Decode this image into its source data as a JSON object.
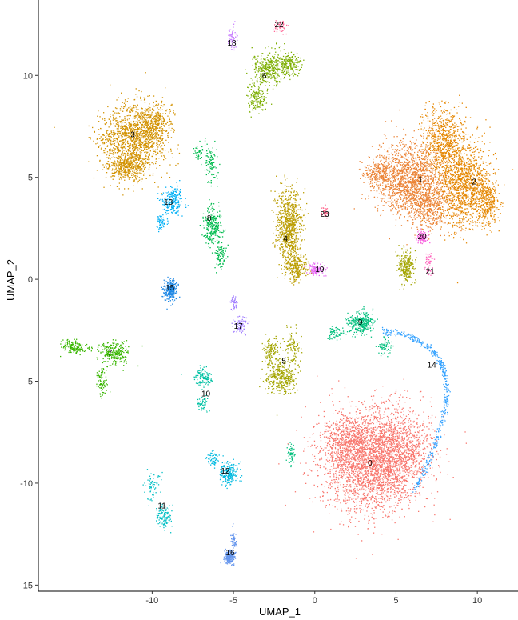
{
  "chart_data": {
    "type": "scatter",
    "xlabel": "UMAP_1",
    "ylabel": "UMAP_2",
    "xlim": [
      -17,
      12.5
    ],
    "ylim": [
      -15.3,
      13.7
    ],
    "x_ticks": [
      -10,
      -5,
      0,
      5,
      10
    ],
    "y_ticks": [
      -15,
      -10,
      -5,
      0,
      5,
      10
    ],
    "x_tick_labels": [
      "-10",
      "-5",
      "0",
      "5",
      "10"
    ],
    "y_tick_labels": [
      "-15",
      "-10",
      "-5",
      "0",
      "5",
      "10"
    ],
    "grid": false,
    "legend": "none",
    "clusters": [
      {
        "label": "0",
        "x": 3.4,
        "y": -9.0,
        "color": "#F8766D",
        "blobs": [
          [
            3.4,
            -9.0,
            2.8,
            2.2,
            2600
          ],
          [
            5.0,
            -8.2,
            2.0,
            1.8,
            900
          ],
          [
            2.0,
            -7.8,
            1.2,
            1.0,
            400
          ]
        ]
      },
      {
        "label": "1",
        "x": 6.5,
        "y": 4.9,
        "color": "#EB8335",
        "blobs": [
          [
            5.8,
            5.0,
            2.0,
            1.6,
            1500
          ],
          [
            7.0,
            3.6,
            1.3,
            1.2,
            500
          ],
          [
            4.0,
            5.2,
            0.9,
            0.5,
            200
          ]
        ]
      },
      {
        "label": "2",
        "x": 9.8,
        "y": 4.8,
        "color": "#E58700",
        "blobs": [
          [
            9.2,
            4.6,
            1.4,
            1.8,
            1200
          ],
          [
            8.0,
            6.8,
            1.2,
            1.5,
            700
          ],
          [
            10.6,
            3.8,
            0.6,
            1.0,
            300
          ]
        ]
      },
      {
        "label": "3",
        "x": -11.2,
        "y": 7.1,
        "color": "#D39200",
        "blobs": [
          [
            -11.3,
            6.8,
            1.8,
            1.6,
            1400
          ],
          [
            -10.0,
            7.6,
            1.0,
            1.0,
            400
          ],
          [
            -11.6,
            5.6,
            0.9,
            0.6,
            250
          ]
        ]
      },
      {
        "label": "4",
        "x": -1.8,
        "y": 2.0,
        "color": "#BB9D00",
        "blobs": [
          [
            -1.6,
            2.6,
            0.7,
            1.6,
            800
          ],
          [
            -1.2,
            0.6,
            0.6,
            0.6,
            250
          ]
        ]
      },
      {
        "label": "5",
        "x": -1.9,
        "y": -4.0,
        "color": "#A3A500",
        "blobs": [
          [
            -2.1,
            -4.8,
            0.8,
            0.7,
            350
          ],
          [
            -2.7,
            -3.5,
            0.5,
            0.6,
            120
          ],
          [
            -1.4,
            -3.3,
            0.4,
            0.7,
            100
          ]
        ]
      },
      {
        "label": "6",
        "x": -3.1,
        "y": 10.0,
        "color": "#7CAE00",
        "blobs": [
          [
            -2.9,
            10.3,
            0.9,
            0.8,
            350
          ],
          [
            -1.6,
            10.6,
            0.7,
            0.5,
            200
          ],
          [
            -3.6,
            8.8,
            0.5,
            0.6,
            150
          ]
        ]
      },
      {
        "label": "7",
        "x": -12.6,
        "y": -3.6,
        "color": "#39B600",
        "blobs": [
          [
            -12.3,
            -3.6,
            0.8,
            0.5,
            250
          ],
          [
            -14.8,
            -3.3,
            0.7,
            0.3,
            150
          ],
          [
            -13.1,
            -4.9,
            0.3,
            0.8,
            80
          ]
        ]
      },
      {
        "label": "8",
        "x": -6.5,
        "y": 3.0,
        "color": "#00BB4E",
        "blobs": [
          [
            -6.3,
            2.6,
            0.5,
            0.8,
            250
          ],
          [
            -6.5,
            5.7,
            0.4,
            0.8,
            100
          ],
          [
            -5.8,
            1.2,
            0.3,
            0.6,
            80
          ]
        ]
      },
      {
        "label": "9",
        "x": 2.8,
        "y": -2.1,
        "color": "#00BF7D",
        "blobs": [
          [
            2.8,
            -2.1,
            0.7,
            0.5,
            300
          ],
          [
            1.2,
            -2.6,
            0.5,
            0.3,
            60
          ],
          [
            4.3,
            -3.3,
            0.4,
            0.4,
            60
          ]
        ]
      },
      {
        "label": "10",
        "x": -6.7,
        "y": -5.6,
        "color": "#00C1A3",
        "blobs": [
          [
            -6.9,
            -4.8,
            0.5,
            0.4,
            120
          ],
          [
            -6.9,
            -6.1,
            0.3,
            0.3,
            60
          ]
        ]
      },
      {
        "label": "11",
        "x": -9.4,
        "y": -11.1,
        "color": "#00BFC4",
        "blobs": [
          [
            -9.3,
            -11.6,
            0.4,
            0.5,
            120
          ],
          [
            -10.1,
            -10.1,
            0.5,
            0.6,
            60
          ]
        ]
      },
      {
        "label": "12",
        "x": -5.5,
        "y": -9.4,
        "color": "#00BAE0",
        "blobs": [
          [
            -5.3,
            -9.5,
            0.5,
            0.5,
            200
          ],
          [
            -6.3,
            -8.8,
            0.3,
            0.3,
            60
          ]
        ]
      },
      {
        "label": "13",
        "x": -9.0,
        "y": 3.8,
        "color": "#00B0F6",
        "blobs": [
          [
            -8.8,
            3.9,
            0.6,
            0.7,
            220
          ],
          [
            -9.5,
            2.8,
            0.3,
            0.3,
            60
          ]
        ]
      },
      {
        "label": "14",
        "x": 7.2,
        "y": -4.2,
        "color": "#35A2FF",
        "blobs": []
      },
      {
        "label": "15",
        "x": -8.9,
        "y": -0.4,
        "color": "#1E88E5",
        "blobs": [
          [
            -8.9,
            -0.5,
            0.35,
            0.5,
            250
          ]
        ]
      },
      {
        "label": "16",
        "x": -5.2,
        "y": -13.4,
        "color": "#6495ED",
        "blobs": [
          [
            -5.3,
            -13.6,
            0.3,
            0.3,
            200
          ],
          [
            -5.0,
            -12.8,
            0.15,
            0.4,
            60
          ]
        ]
      },
      {
        "label": "17",
        "x": -4.7,
        "y": -2.3,
        "color": "#9F7BFF",
        "blobs": [
          [
            -4.6,
            -2.2,
            0.4,
            0.4,
            80
          ],
          [
            -5.0,
            -1.1,
            0.2,
            0.4,
            40
          ]
        ]
      },
      {
        "label": "18",
        "x": -5.1,
        "y": 11.6,
        "color": "#C77CFF",
        "blobs": [
          [
            -5.1,
            11.9,
            0.25,
            0.5,
            60
          ]
        ]
      },
      {
        "label": "19",
        "x": 0.3,
        "y": 0.5,
        "color": "#E76BF3",
        "blobs": [
          [
            0.1,
            0.5,
            0.5,
            0.25,
            120
          ]
        ]
      },
      {
        "label": "20",
        "x": 6.6,
        "y": 2.1,
        "color": "#F763E0",
        "blobs": [
          [
            6.6,
            2.1,
            0.3,
            0.25,
            100
          ]
        ]
      },
      {
        "label": "21",
        "x": 7.1,
        "y": 0.4,
        "color": "#FF62BC",
        "blobs": [
          [
            7.0,
            0.8,
            0.2,
            0.5,
            50
          ]
        ]
      },
      {
        "label": "22",
        "x": -2.2,
        "y": 12.5,
        "color": "#FF6A98",
        "blobs": [
          [
            -2.2,
            12.4,
            0.4,
            0.3,
            50
          ]
        ]
      },
      {
        "label": "23",
        "x": 0.6,
        "y": 3.2,
        "color": "#FF6C91",
        "blobs": [
          [
            0.6,
            3.3,
            0.2,
            0.3,
            40
          ]
        ]
      }
    ],
    "extra_blobs": [
      {
        "color": "#A3A500",
        "blob": [
          5.6,
          0.6,
          0.4,
          0.7,
          250
        ]
      },
      {
        "color": "#00BF7D",
        "blob": [
          -1.5,
          -8.6,
          0.2,
          0.5,
          60
        ]
      },
      {
        "color": "#00BB4E",
        "blob": [
          -7.1,
          6.2,
          0.3,
          0.3,
          40
        ]
      }
    ],
    "arc_14": {
      "from": [
        4.0,
        -2.5
      ],
      "ctrl": [
        11.0,
        -3.0
      ],
      "to": [
        6.0,
        -10.5
      ],
      "n": 450,
      "color": "#35A2FF"
    }
  }
}
